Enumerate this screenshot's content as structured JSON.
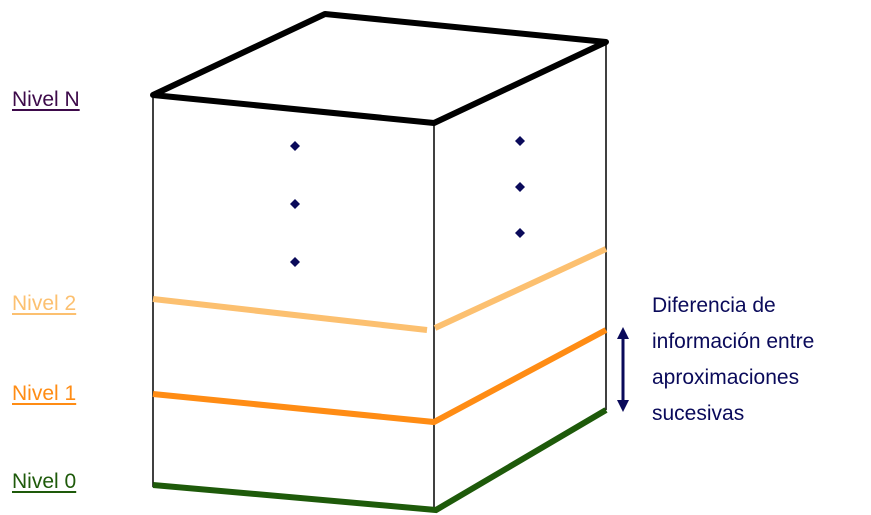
{
  "levels": [
    {
      "id": "n",
      "label": "Nivel N",
      "color": "#3d0a4a"
    },
    {
      "id": "2",
      "label": "Nivel 2",
      "color": "#fcc070"
    },
    {
      "id": "1",
      "label": "Nivel 1",
      "color": "#ff8c14"
    },
    {
      "id": "0",
      "label": "Nivel 0",
      "color": "#1e5a0a"
    }
  ],
  "annotation": {
    "lines": [
      "Diferencia de",
      "información entre",
      "aproximaciones",
      "sucesivas"
    ],
    "color": "#0a0a5a"
  },
  "colors": {
    "top_edge": "#000000",
    "vertical_edge": "#000000",
    "dots": "#0a0a5a",
    "arrow": "#0a0a5a"
  }
}
